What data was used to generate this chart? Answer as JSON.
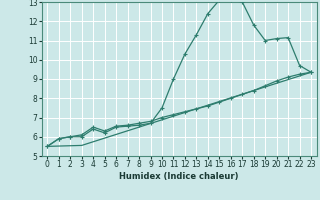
{
  "title": "",
  "xlabel": "Humidex (Indice chaleur)",
  "xlim": [
    -0.5,
    23.5
  ],
  "ylim": [
    5,
    13
  ],
  "xticks": [
    0,
    1,
    2,
    3,
    4,
    5,
    6,
    7,
    8,
    9,
    10,
    11,
    12,
    13,
    14,
    15,
    16,
    17,
    18,
    19,
    20,
    21,
    22,
    23
  ],
  "yticks": [
    5,
    6,
    7,
    8,
    9,
    10,
    11,
    12,
    13
  ],
  "background_color": "#cce8e8",
  "grid_color": "#ffffff",
  "line_color": "#2e7d6e",
  "line1_x": [
    0,
    1,
    2,
    3,
    4,
    5,
    6,
    7,
    8,
    9,
    10,
    11,
    12,
    13,
    14,
    15,
    16,
    17,
    18,
    19,
    20,
    21,
    22,
    23
  ],
  "line1_y": [
    5.5,
    5.9,
    6.0,
    6.0,
    6.4,
    6.2,
    6.5,
    6.55,
    6.6,
    6.7,
    7.5,
    9.0,
    10.3,
    11.3,
    12.4,
    13.1,
    13.1,
    13.0,
    11.8,
    11.0,
    11.1,
    11.15,
    9.7,
    9.35
  ],
  "line2_x": [
    0,
    1,
    2,
    3,
    4,
    5,
    6,
    7,
    8,
    9,
    10,
    11,
    12,
    13,
    14,
    15,
    16,
    17,
    18,
    19,
    20,
    21,
    22,
    23
  ],
  "line2_y": [
    5.5,
    5.9,
    6.0,
    6.1,
    6.5,
    6.3,
    6.55,
    6.6,
    6.7,
    6.8,
    7.0,
    7.15,
    7.3,
    7.45,
    7.6,
    7.8,
    8.0,
    8.2,
    8.4,
    8.65,
    8.9,
    9.1,
    9.25,
    9.35
  ],
  "line3_x": [
    0,
    3,
    23
  ],
  "line3_y": [
    5.5,
    5.55,
    9.35
  ]
}
